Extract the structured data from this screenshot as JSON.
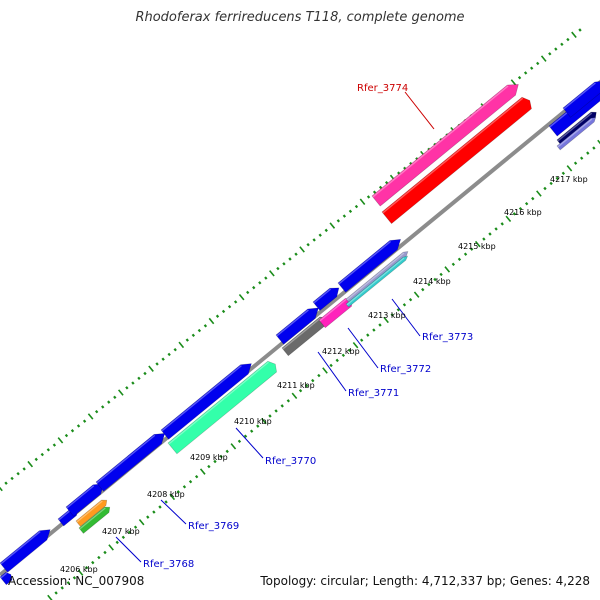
{
  "title": "Rhodoferax ferrireducens T118, complete genome",
  "footer": {
    "accession": "Accession: NC_007908",
    "summary": "Topology: circular; Length: 4,712,337 bp; Genes: 4,228"
  },
  "colors": {
    "backbone": "#8c8c8c",
    "ticks": "#1a8c1a",
    "highlight_label": "#cc0000",
    "gene_label": "#0000cc"
  },
  "kbp_labels": [
    "4206 kbp",
    "4207 kbp",
    "4208 kbp",
    "4209 kbp",
    "4210 kbp",
    "4211 kbp",
    "4212 kbp",
    "4213 kbp",
    "4214 kbp",
    "4215 kbp",
    "4216 kbp",
    "4217 kbp"
  ],
  "gene_labels": [
    {
      "name": "Rfer_3774",
      "color": "highlight"
    },
    {
      "name": "Rfer_3773",
      "color": "gene"
    },
    {
      "name": "Rfer_3772",
      "color": "gene"
    },
    {
      "name": "Rfer_3771",
      "color": "gene"
    },
    {
      "name": "Rfer_3770",
      "color": "gene"
    },
    {
      "name": "Rfer_3769",
      "color": "gene"
    },
    {
      "name": "Rfer_3768",
      "color": "gene"
    }
  ],
  "features": [
    {
      "type": "gene-arrow",
      "color": "#0000ee",
      "dir": "rev"
    },
    {
      "type": "gene-arrow",
      "color": "#0000ee",
      "dir": "fwd"
    },
    {
      "type": "gene-arrow",
      "color": "#0000ee",
      "dir": "fwd"
    },
    {
      "type": "gene-arrow",
      "color": "#0000ee",
      "dir": "fwd"
    },
    {
      "type": "gene-arrow",
      "color": "#0000ee",
      "dir": "fwd"
    },
    {
      "type": "gene-arrow",
      "color": "#0000ee",
      "dir": "fwd"
    },
    {
      "type": "gene-arrow",
      "color": "#0000ee",
      "dir": "fwd"
    },
    {
      "type": "gene-arrow",
      "color": "#0000ee",
      "dir": "fwd"
    },
    {
      "type": "gene-arrow",
      "color": "#0000ee",
      "dir": "fwd"
    },
    {
      "type": "gene-arrow",
      "color": "#0000ee",
      "dir": "fwd"
    },
    {
      "type": "gene-arrow",
      "color": "#ff33a6",
      "dir": "fwd"
    },
    {
      "type": "gene-arrow",
      "color": "#0000ee",
      "dir": "fwd"
    },
    {
      "type": "cds-block",
      "color": "#000066",
      "dir": "fwd"
    },
    {
      "type": "cds-block",
      "color": "#ff9a1f",
      "dir": "fwd"
    },
    {
      "type": "cds-block",
      "color": "#33bb33",
      "dir": "fwd"
    },
    {
      "type": "cds-block",
      "color": "#33ffaa",
      "dir": "fwd"
    },
    {
      "type": "cds-block",
      "color": "#6a6a6a",
      "dir": "fwd"
    },
    {
      "type": "cds-block",
      "color": "#ff22bb",
      "dir": "fwd"
    },
    {
      "type": "cds-block",
      "color": "#9999cc",
      "dir": "fwd"
    },
    {
      "type": "cds-block",
      "color": "#33cccc",
      "dir": "fwd"
    },
    {
      "type": "cds-block",
      "color": "#ff0000",
      "dir": "fwd"
    },
    {
      "type": "cds-block",
      "color": "#7777dd",
      "dir": "fwd"
    }
  ]
}
